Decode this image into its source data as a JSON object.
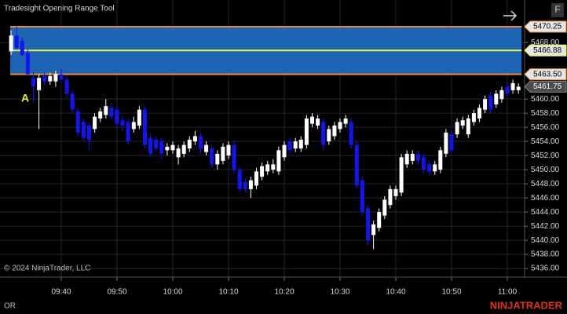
{
  "chart_data": {
    "type": "candlestick",
    "title": "Tradesight Opening Range Tool",
    "annotation": "A",
    "copyright": "© 2024 NinjaTrader, LLC",
    "footer_label": "OR",
    "logo": "NINJATRADER",
    "button": "F",
    "up_color": "#ffffff",
    "down_color": "#1414f0",
    "grid": true,
    "categories": [
      null,
      null,
      null,
      null,
      null,
      null,
      null,
      null,
      null,
      "09:40",
      null,
      null,
      null,
      null,
      null,
      null,
      null,
      null,
      null,
      "09:50",
      null,
      null,
      null,
      null,
      null,
      null,
      null,
      null,
      null,
      "10:00",
      null,
      null,
      null,
      null,
      null,
      null,
      null,
      null,
      null,
      "10:10",
      null,
      null,
      null,
      null,
      null,
      null,
      null,
      null,
      null,
      "10:20",
      null,
      null,
      null,
      null,
      null,
      null,
      null,
      null,
      null,
      "10:30",
      null,
      null,
      null,
      null,
      null,
      null,
      null,
      null,
      null,
      "10:40",
      null,
      null,
      null,
      null,
      null,
      null,
      null,
      null,
      null,
      "10:50",
      null,
      null,
      null,
      null,
      null,
      null,
      null,
      null,
      null,
      "11:00",
      null,
      null
    ],
    "open": [
      5466.75,
      5469,
      5468.25,
      5466.5,
      5463,
      5461.25,
      5463.25,
      5462.5,
      5462.5,
      5463.5,
      5462.75,
      5460.75,
      5458.25,
      5456.75,
      5456.25,
      5455.75,
      5457.25,
      5457.75,
      5458.75,
      5458.5,
      5457,
      5456.75,
      5455.75,
      5456.25,
      5458.5,
      5454.5,
      5454.25,
      5454,
      5452.75,
      5452.75,
      5451.75,
      5452.25,
      5453,
      5454,
      5454.75,
      5452.5,
      5453,
      5450.75,
      5451.25,
      5452,
      5453.5,
      5450,
      5448.25,
      5447.25,
      5447.75,
      5449,
      5449.75,
      5450,
      5449.75,
      5451.75,
      5454,
      5453,
      5453,
      5453.5,
      5456.5,
      5456.25,
      5456.75,
      5454,
      5454.75,
      5455.75,
      5456.5,
      5456.75,
      5453.5,
      5448.5,
      5444.5,
      5440.75,
      5441.75,
      5443.5,
      5445,
      5446.25,
      5446.75,
      5450.75,
      5451.25,
      5452.25,
      5451.75,
      5450.75,
      5449.75,
      5450,
      5452.25,
      5455,
      5455,
      5456.25,
      5455,
      5456.75,
      5457.25,
      5458.5,
      5460.5,
      5459.25,
      5460,
      5461.75,
      5461.25,
      5461.25
    ],
    "high": [
      5469.75,
      5470.25,
      5468.75,
      5467,
      5463.75,
      5463.5,
      5463.75,
      5463.75,
      5464,
      5464.25,
      5463.25,
      5461.25,
      5458.75,
      5457.25,
      5456.75,
      5458,
      5458.75,
      5460,
      5459.5,
      5459,
      5457.5,
      5457.25,
      5457.5,
      5459,
      5459,
      5455,
      5454.75,
      5454.5,
      5453.75,
      5454,
      5453.5,
      5454,
      5454.75,
      5455.5,
      5455.25,
      5454,
      5453.5,
      5452.75,
      5453.75,
      5454,
      5454.25,
      5450.5,
      5448.75,
      5449,
      5450.25,
      5451,
      5451.25,
      5451.5,
      5453.25,
      5454,
      5454.5,
      5454.5,
      5454.75,
      5457.75,
      5458,
      5457.75,
      5457.25,
      5456.25,
      5456.75,
      5457.25,
      5457.75,
      5457.25,
      5454,
      5449,
      5445,
      5442.75,
      5444.5,
      5446.25,
      5447.75,
      5447.75,
      5452.25,
      5452.75,
      5452.75,
      5452.75,
      5452.25,
      5451.25,
      5451.25,
      5453.25,
      5455.75,
      5455.5,
      5457.25,
      5457.5,
      5457.75,
      5458.5,
      5459.25,
      5460.5,
      5461,
      5461.25,
      5461.75,
      5462.25,
      5462.75,
      5462.25
    ],
    "low": [
      5466.25,
      5467,
      5466,
      5463.5,
      5459.5,
      5455.75,
      5462,
      5462,
      5461.75,
      5462.25,
      5460.25,
      5458,
      5454.75,
      5454,
      5452.75,
      5455.25,
      5456.75,
      5457.25,
      5457,
      5456,
      5455.5,
      5453.5,
      5455.25,
      5455.75,
      5453,
      5451.75,
      5452.5,
      5451.5,
      5452,
      5452.25,
      5450.75,
      5451.75,
      5452.5,
      5453.5,
      5452.25,
      5452,
      5450.25,
      5450,
      5450.75,
      5451.5,
      5449.5,
      5446.75,
      5446.75,
      5446,
      5447.25,
      5448.5,
      5449.25,
      5449.5,
      5449.25,
      5451.25,
      5452.25,
      5452.5,
      5452.5,
      5453,
      5456,
      5455.75,
      5452.75,
      5453.5,
      5454.25,
      5455.25,
      5456,
      5453,
      5447.25,
      5443.5,
      5439.25,
      5438.75,
      5441.25,
      5443,
      5444.5,
      5445.75,
      5446.25,
      5450.25,
      5450.75,
      5450.75,
      5449.5,
      5449.25,
      5449.25,
      5449.5,
      5451.75,
      5452.25,
      5454.5,
      5455.75,
      5454.5,
      5456.25,
      5456.75,
      5458,
      5458,
      5458.75,
      5459.5,
      5460.25,
      5460.75,
      5460.75
    ],
    "close": [
      5469,
      5467.25,
      5466.25,
      5463.5,
      5461.75,
      5463,
      5462.5,
      5463.25,
      5463.5,
      5462.75,
      5460.75,
      5458.5,
      5455.25,
      5454.5,
      5454.25,
      5457.5,
      5458.25,
      5459,
      5457.5,
      5456.5,
      5456.25,
      5454,
      5456.75,
      5458.5,
      5453.5,
      5452.25,
      5453,
      5452.25,
      5453.25,
      5453.5,
      5453,
      5453.5,
      5454.25,
      5454.75,
      5453,
      5453.5,
      5450.75,
      5452.25,
      5453.25,
      5453.5,
      5450,
      5447.25,
      5447.25,
      5448.5,
      5449.75,
      5450.5,
      5450.75,
      5450.75,
      5452.75,
      5453.5,
      5452.75,
      5454,
      5454.25,
      5457.25,
      5457.5,
      5457.25,
      5453.5,
      5455.75,
      5456.25,
      5456.75,
      5457.25,
      5453.5,
      5447.75,
      5444,
      5440,
      5442.25,
      5444,
      5445.75,
      5447.25,
      5447.25,
      5451.75,
      5452.25,
      5452.25,
      5451.25,
      5450,
      5449.75,
      5450.75,
      5452.75,
      5455.25,
      5452.75,
      5456.75,
      5457,
      5457.25,
      5458,
      5458.75,
      5460,
      5458.5,
      5460.75,
      5461.25,
      5460.75,
      5462.25,
      5461.75
    ],
    "ylim": [
      5434.9,
      5471.8
    ],
    "yticks": [
      {
        "value": 5436,
        "label": "5436.00"
      },
      {
        "value": 5438,
        "label": "5438.00"
      },
      {
        "value": 5440,
        "label": "5440.00"
      },
      {
        "value": 5442,
        "label": "5442.00"
      },
      {
        "value": 5444,
        "label": "5444.00"
      },
      {
        "value": 5446,
        "label": "5446.00"
      },
      {
        "value": 5448,
        "label": "5448.00"
      },
      {
        "value": 5450,
        "label": "5450.00"
      },
      {
        "value": 5452,
        "label": "5452.00"
      },
      {
        "value": 5454,
        "label": "5454.00"
      },
      {
        "value": 5456,
        "label": "5456.00"
      },
      {
        "value": 5458,
        "label": "5458.00"
      },
      {
        "value": 5460,
        "label": "5460.00"
      },
      {
        "value": 5468,
        "label": "5468.00"
      }
    ],
    "opening_range": {
      "high": 5470.25,
      "mid": 5466.88,
      "low": {
        "value": 5463.5,
        "label": "5463.50"
      },
      "fill": "#1f6cc4",
      "edge_color": "#f0883a",
      "mid_color": "#f2ee3c"
    },
    "last_price": 5461.75
  }
}
